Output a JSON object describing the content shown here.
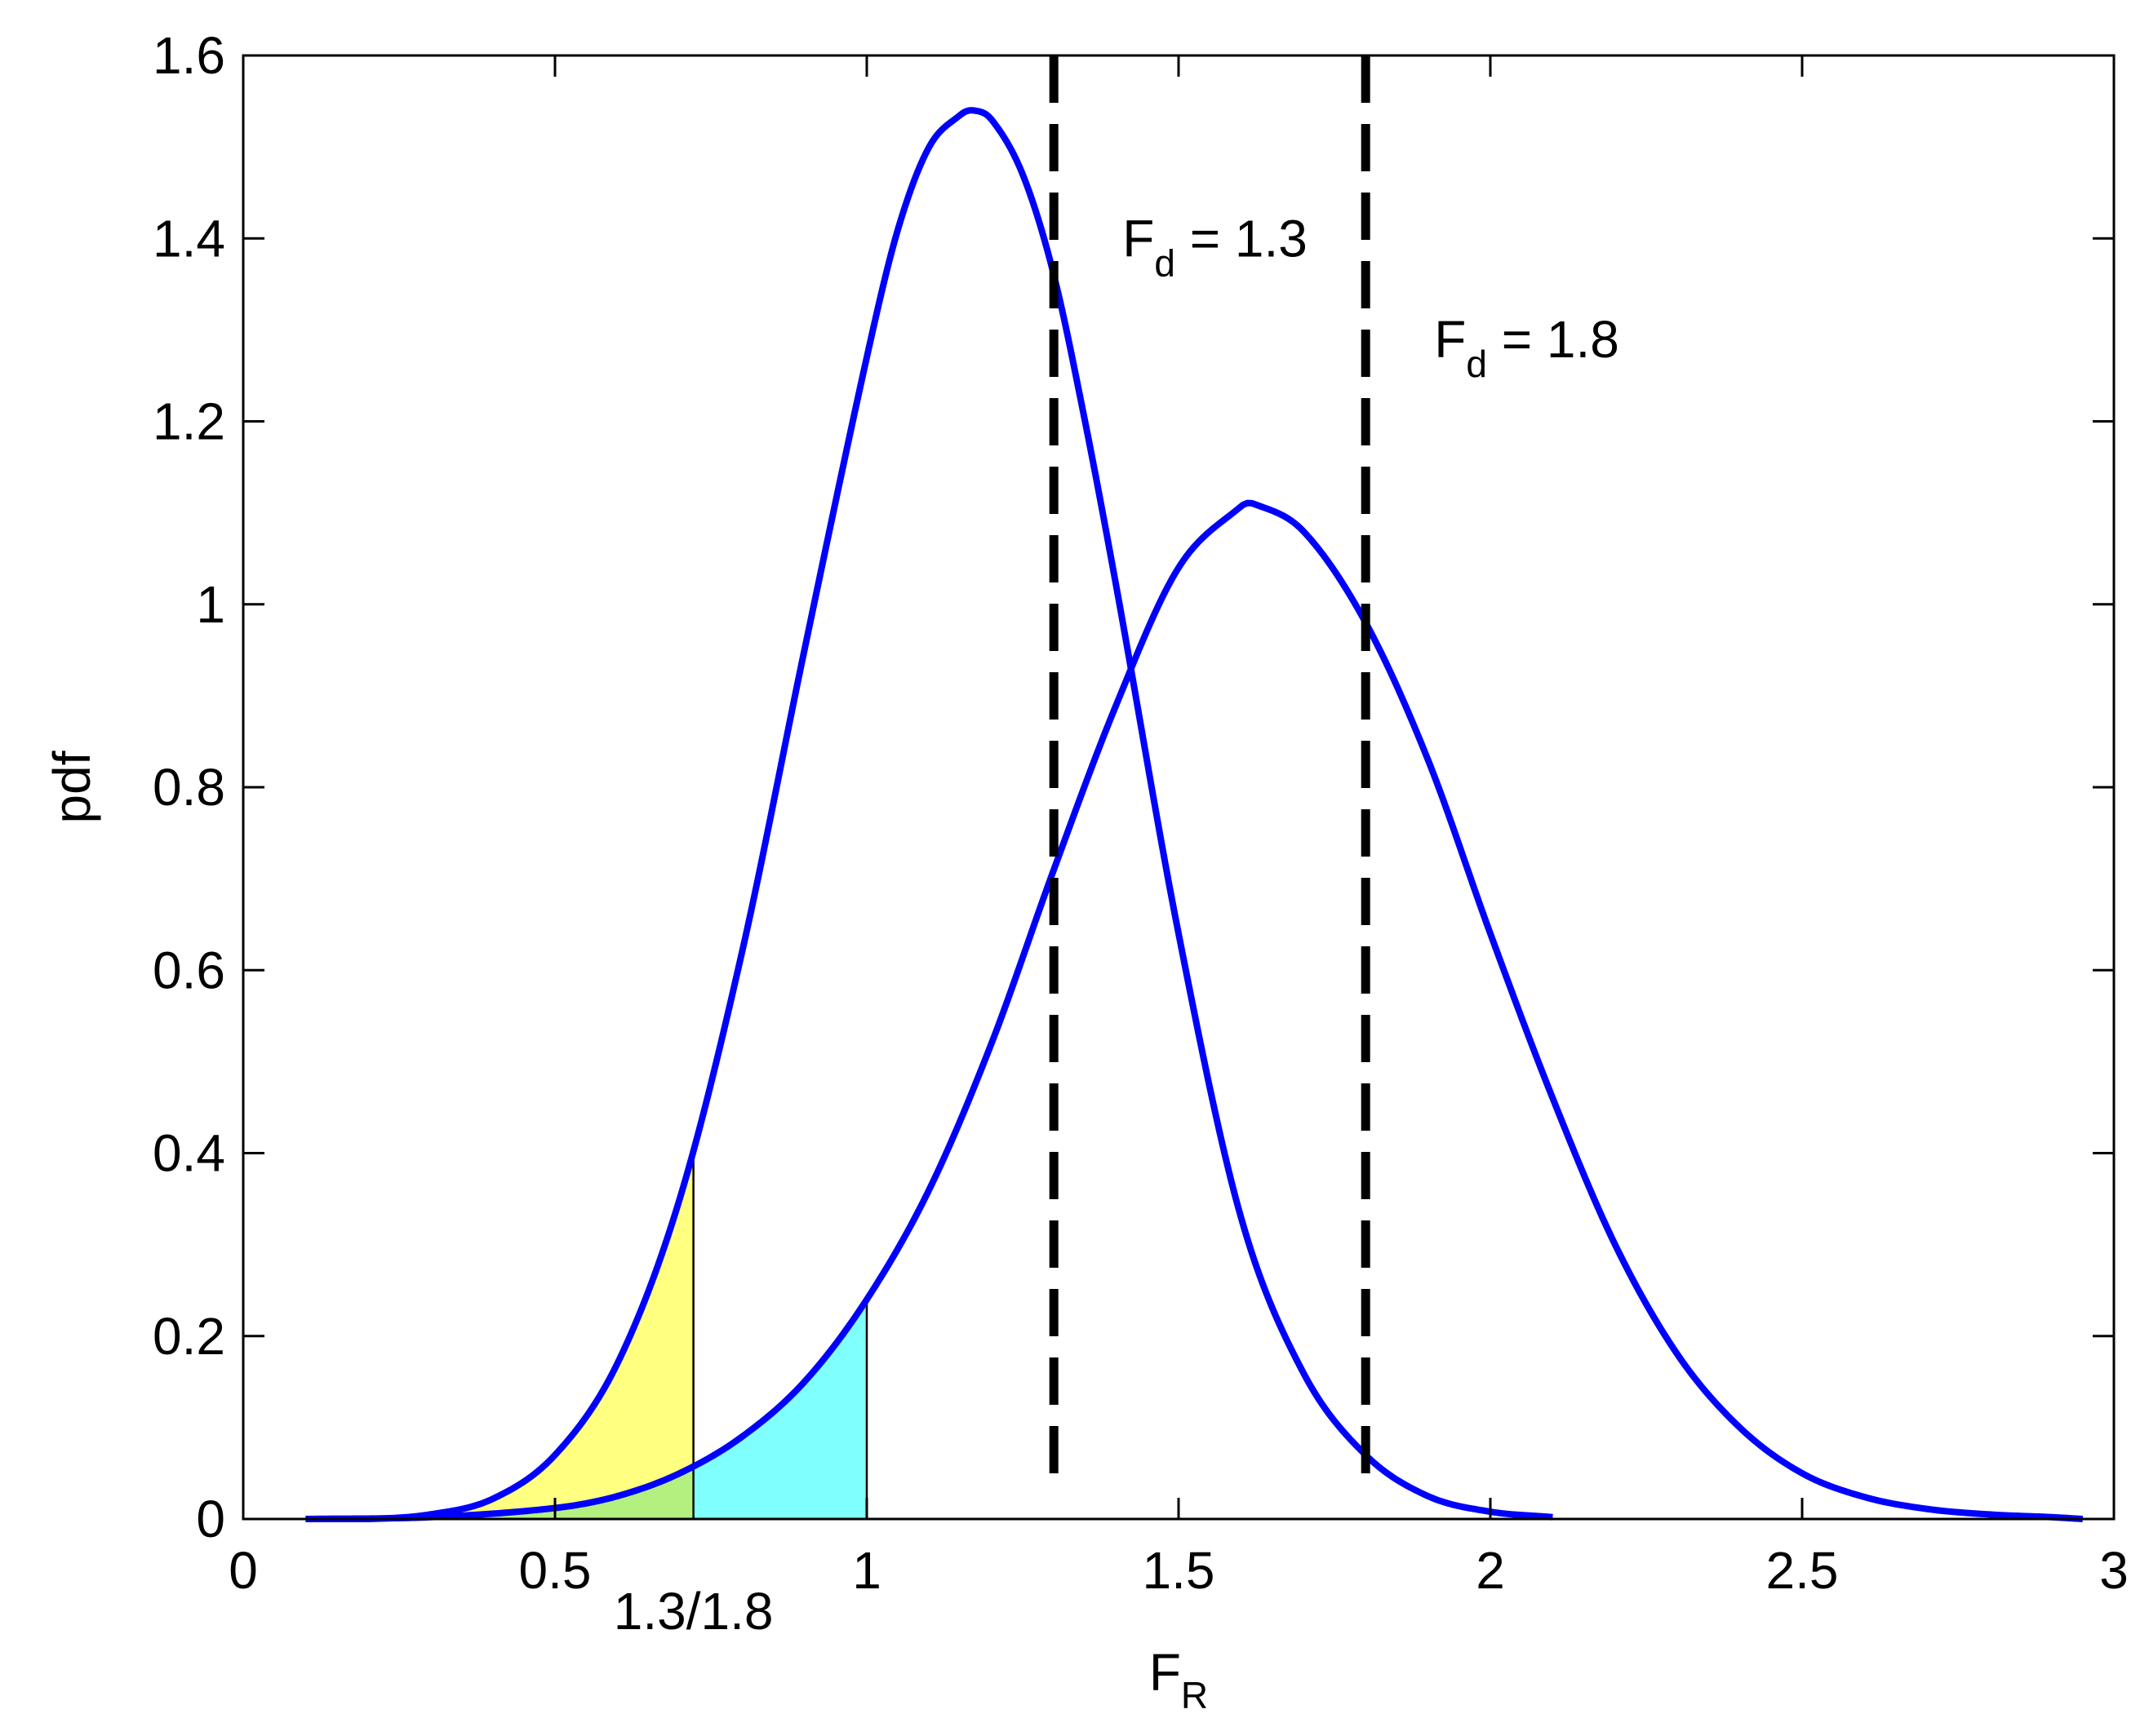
{
  "chart_data": {
    "type": "line",
    "title": "",
    "xlabel": "F",
    "xlabel_sub": "R",
    "ylabel": "pdf",
    "xlim": [
      0,
      3
    ],
    "ylim": [
      0,
      1.6
    ],
    "grid": false,
    "xticks": [
      {
        "value": 0,
        "label": "0"
      },
      {
        "value": 0.5,
        "label": "0.5"
      },
      {
        "value": 1,
        "label": "1"
      },
      {
        "value": 1.5,
        "label": "1.5"
      },
      {
        "value": 2,
        "label": "2"
      },
      {
        "value": 2.5,
        "label": "2.5"
      },
      {
        "value": 3,
        "label": "3"
      }
    ],
    "yticks": [
      {
        "value": 0,
        "label": "0"
      },
      {
        "value": 0.2,
        "label": "0.2"
      },
      {
        "value": 0.4,
        "label": "0.4"
      },
      {
        "value": 0.6,
        "label": "0.6"
      },
      {
        "value": 0.8,
        "label": "0.8"
      },
      {
        "value": 1,
        "label": "1"
      },
      {
        "value": 1.2,
        "label": "1.2"
      },
      {
        "value": 1.4,
        "label": "1.4"
      },
      {
        "value": 1.6,
        "label": "1.6"
      }
    ],
    "series": [
      {
        "color": "#0000ff",
        "x": [
          0.1,
          0.2,
          0.3,
          0.4,
          0.5,
          0.6,
          0.7,
          0.8,
          0.9,
          1.0,
          1.05,
          1.1,
          1.15,
          1.17,
          1.2,
          1.25,
          1.3,
          1.35,
          1.4,
          1.5,
          1.6,
          1.7,
          1.8,
          1.9,
          2.0,
          2.1
        ],
        "y": [
          0.0,
          0.0,
          0.005,
          0.022,
          0.07,
          0.17,
          0.35,
          0.62,
          0.95,
          1.27,
          1.41,
          1.5,
          1.535,
          1.54,
          1.53,
          1.47,
          1.36,
          1.2,
          1.02,
          0.64,
          0.33,
          0.16,
          0.07,
          0.025,
          0.008,
          0.002
        ]
      },
      {
        "color": "#0000ff",
        "x": [
          0.1,
          0.3,
          0.5,
          0.6,
          0.7,
          0.8,
          0.9,
          1.0,
          1.1,
          1.2,
          1.3,
          1.4,
          1.5,
          1.6,
          1.62,
          1.7,
          1.8,
          1.9,
          2.0,
          2.1,
          2.2,
          2.3,
          2.4,
          2.5,
          2.6,
          2.7,
          2.8,
          2.9,
          2.95
        ],
        "y": [
          0.0,
          0.002,
          0.012,
          0.025,
          0.05,
          0.09,
          0.15,
          0.24,
          0.36,
          0.52,
          0.71,
          0.89,
          1.04,
          1.107,
          1.11,
          1.08,
          0.98,
          0.83,
          0.64,
          0.46,
          0.3,
          0.18,
          0.1,
          0.05,
          0.024,
          0.011,
          0.005,
          0.002,
          0.0
        ]
      }
    ],
    "design_lines": [
      {
        "x": 1.3,
        "label": "F",
        "label_sub": "d",
        "label_rest": " = 1.3",
        "label_x": 1.41,
        "label_y": 1.38
      },
      {
        "x": 1.8,
        "label": "F",
        "label_sub": "d",
        "label_rest": " = 1.8",
        "label_x": 1.91,
        "label_y": 1.27
      }
    ],
    "shaded_regions": [
      {
        "series": 0,
        "x_to": 0.722,
        "color": "#ffff80"
      },
      {
        "series": 1,
        "x_to": 1.0,
        "color": "#80ffff"
      }
    ],
    "overlap_color": "#b4f080",
    "annotations": [
      {
        "text": "1.3/1.8",
        "x": 0.722,
        "y": -0.12
      }
    ]
  }
}
